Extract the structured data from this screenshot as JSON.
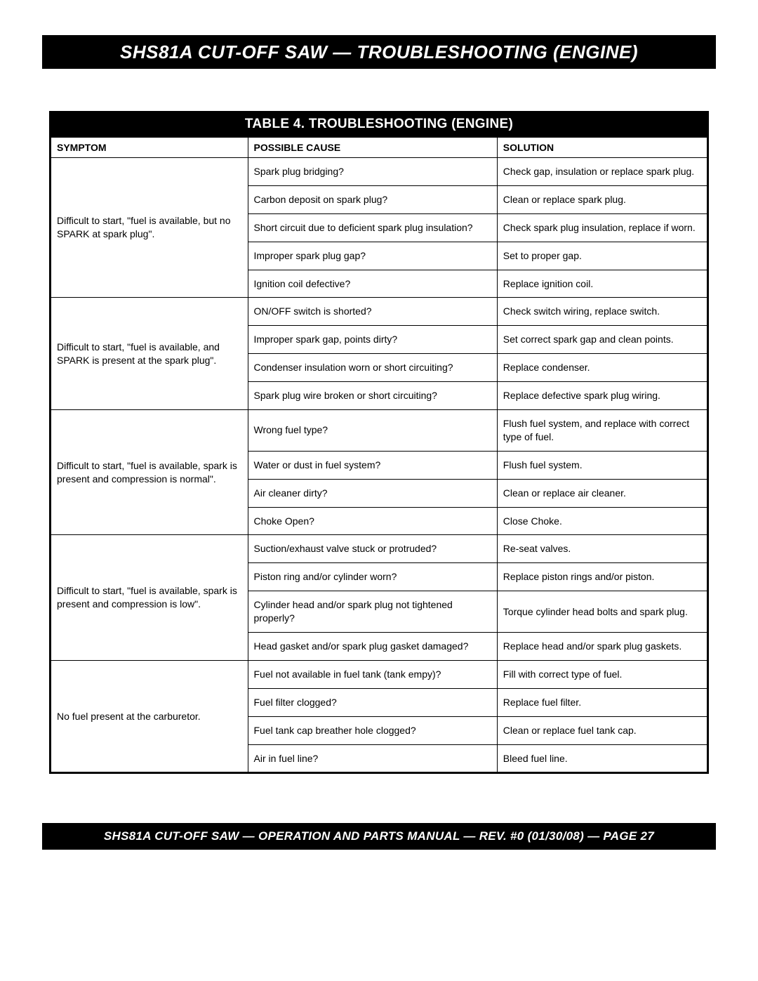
{
  "header": {
    "title": "SHS81A CUT-OFF SAW — TROUBLESHOOTING (ENGINE)"
  },
  "table": {
    "type": "table",
    "title": "TABLE 4. TROUBLESHOOTING (ENGINE)",
    "columns": {
      "symptom": "SYMPTOM",
      "cause": "POSSIBLE CAUSE",
      "solution": "SOLUTION"
    },
    "groups": [
      {
        "symptom": "Difficult to start, \"fuel is available, but no SPARK at spark plug\".",
        "rows": [
          {
            "cause": "Spark plug bridging?",
            "solution": "Check gap, insulation or replace spark plug."
          },
          {
            "cause": "Carbon deposit on spark plug?",
            "solution": "Clean or replace spark plug."
          },
          {
            "cause": "Short circuit due to deficient spark plug insulation?",
            "solution": "Check spark plug insulation, replace if worn."
          },
          {
            "cause": "Improper spark plug gap?",
            "solution": "Set to proper gap."
          },
          {
            "cause": "Ignition coil defective?",
            "solution": "Replace ignition coil."
          }
        ]
      },
      {
        "symptom": "Difficult to start, \"fuel is available, and SPARK is present at the spark plug\".",
        "justify": true,
        "rows": [
          {
            "cause": "ON/OFF switch is shorted?",
            "solution": "Check switch wiring, replace switch."
          },
          {
            "cause": "Improper spark gap, points dirty?",
            "solution": "Set correct spark gap and clean points."
          },
          {
            "cause": "Condenser insulation worn or short circuiting?",
            "solution": "Replace condenser."
          },
          {
            "cause": "Spark plug wire broken or short circuiting?",
            "solution": "Replace defective spark plug wiring.",
            "solJustify": true
          }
        ]
      },
      {
        "symptom": "Difficult to start, \"fuel is available, spark is present and compression is normal\".",
        "rows": [
          {
            "cause": "Wrong fuel type?",
            "solution": "Flush fuel system, and replace with correct type of fuel.",
            "solJustify": true
          },
          {
            "cause": "Water or dust in fuel system?",
            "solution": "Flush fuel system."
          },
          {
            "cause": "Air cleaner dirty?",
            "solution": "Clean or replace air cleaner."
          },
          {
            "cause": "Choke Open?",
            "solution": "Close Choke."
          }
        ]
      },
      {
        "symptom": "Difficult to start, \"fuel is available, spark is present and compression is low\".",
        "rows": [
          {
            "cause": "Suction/exhaust valve stuck or protruded?",
            "solution": "Re-seat valves."
          },
          {
            "cause": "Piston ring and/or cylinder worn?",
            "solution": "Replace piston rings and/or piston.",
            "solJustify": true
          },
          {
            "cause": "Cylinder head and/or spark plug not tightened properly?",
            "solution": "Torque cylinder head bolts and spark plug.",
            "solJustify": true
          },
          {
            "cause": "Head gasket and/or spark plug gasket damaged?",
            "solution": "Replace head and/or spark plug gaskets."
          }
        ]
      },
      {
        "symptom": "No fuel present at the carburetor.",
        "rows": [
          {
            "cause": "Fuel not available in fuel tank (tank empy)?",
            "solution": "Fill with correct type of fuel."
          },
          {
            "cause": "Fuel filter clogged?",
            "solution": "Replace fuel filter."
          },
          {
            "cause": "Fuel tank cap breather hole clogged?",
            "solution": "Clean or replace fuel tank cap."
          },
          {
            "cause": "Air in fuel line?",
            "solution": "Bleed fuel line."
          }
        ]
      }
    ]
  },
  "footer": {
    "text": "SHS81A CUT-OFF SAW — OPERATION AND PARTS MANUAL — REV. #0 (01/30/08) — PAGE 27"
  }
}
